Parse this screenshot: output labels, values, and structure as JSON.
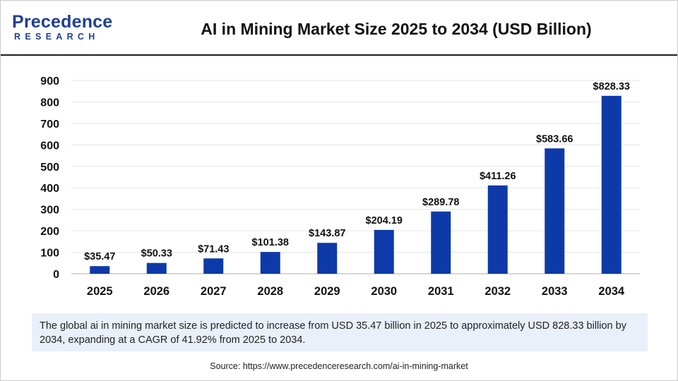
{
  "brand": {
    "name": "Precedence",
    "sub": "RESEARCH",
    "color": "#1f3f8f"
  },
  "chart_data": {
    "type": "bar",
    "title": "AI in Mining Market Size 2025 to 2034 (USD Billion)",
    "categories": [
      "2025",
      "2026",
      "2027",
      "2028",
      "2029",
      "2030",
      "2031",
      "2032",
      "2033",
      "2034"
    ],
    "values": [
      35.47,
      50.33,
      71.43,
      101.38,
      143.87,
      204.19,
      289.78,
      411.26,
      583.66,
      828.33
    ],
    "data_labels": [
      "$35.47",
      "$50.33",
      "$71.43",
      "$101.38",
      "$143.87",
      "$204.19",
      "$289.78",
      "$411.26",
      "$583.66",
      "$828.33"
    ],
    "y_ticks": [
      0,
      100,
      200,
      300,
      400,
      500,
      600,
      700,
      800,
      900
    ],
    "ylim": [
      0,
      900
    ],
    "xlabel": "",
    "ylabel": "",
    "grid": true,
    "bar_color": "#0d3aa8"
  },
  "note": "The global ai in mining market size is predicted to increase from USD 35.47 billion in 2025 to approximately USD 828.33 billion by 2034, expanding at a CAGR of 41.92% from 2025 to 2034.",
  "source": "Source: https://www.precedenceresearch.com/ai-in-mining-market"
}
